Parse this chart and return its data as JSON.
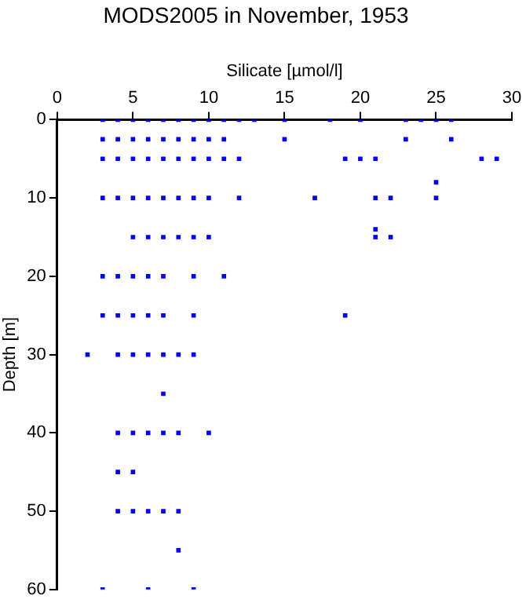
{
  "chart_data": {
    "type": "scatter",
    "title": "MODS2005 in November, 1953",
    "xlabel": "Silicate [µmol/l]",
    "ylabel": "Depth [m]",
    "x": [
      3,
      4,
      5,
      6,
      7,
      8,
      9,
      10,
      11,
      12,
      13,
      15,
      18,
      20,
      23,
      24,
      25,
      26,
      3,
      4,
      5,
      6,
      7,
      8,
      9,
      10,
      11,
      15,
      23,
      26,
      3,
      4,
      5,
      6,
      7,
      8,
      9,
      10,
      11,
      12,
      19,
      20,
      21,
      28,
      29,
      25,
      3,
      4,
      5,
      6,
      7,
      8,
      9,
      10,
      12,
      17,
      21,
      22,
      25,
      21,
      5,
      6,
      7,
      8,
      9,
      10,
      21,
      22,
      3,
      4,
      5,
      6,
      7,
      9,
      11,
      3,
      4,
      5,
      6,
      7,
      9,
      19,
      2,
      4,
      5,
      6,
      7,
      8,
      9,
      7,
      4,
      5,
      6,
      7,
      8,
      10,
      4,
      5,
      4,
      5,
      6,
      7,
      8,
      8,
      3,
      6,
      9
    ],
    "values": [
      0,
      0,
      0,
      0,
      0,
      0,
      0,
      0,
      0,
      0,
      0,
      0,
      0,
      0,
      0,
      0,
      0,
      0,
      2.5,
      2.5,
      2.5,
      2.5,
      2.5,
      2.5,
      2.5,
      2.5,
      2.5,
      2.5,
      2.5,
      2.5,
      5,
      5,
      5,
      5,
      5,
      5,
      5,
      5,
      5,
      5,
      5,
      5,
      5,
      5,
      5,
      8,
      10,
      10,
      10,
      10,
      10,
      10,
      10,
      10,
      10,
      10,
      10,
      10,
      10,
      14,
      15,
      15,
      15,
      15,
      15,
      15,
      15,
      15,
      20,
      20,
      20,
      20,
      20,
      20,
      20,
      25,
      25,
      25,
      25,
      25,
      25,
      25,
      30,
      30,
      30,
      30,
      30,
      30,
      30,
      35,
      40,
      40,
      40,
      40,
      40,
      40,
      45,
      45,
      50,
      50,
      50,
      50,
      50,
      55,
      60,
      60,
      60
    ],
    "color": "#0000ff",
    "marker": "square",
    "xlim": [
      0,
      30
    ],
    "xticks": [
      0,
      5,
      10,
      15,
      20,
      25,
      30
    ],
    "ylim": [
      60,
      0
    ],
    "yticks": [
      0,
      10,
      20,
      30,
      40,
      50,
      60
    ]
  }
}
